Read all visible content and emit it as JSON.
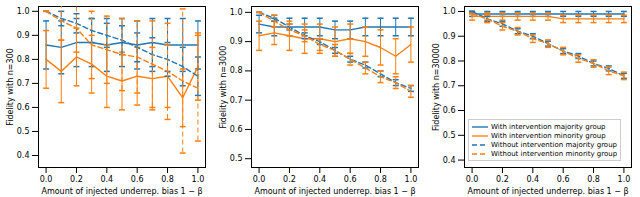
{
  "chart_data": [
    {
      "type": "line",
      "x": [
        0.0,
        0.1,
        0.2,
        0.3,
        0.4,
        0.5,
        0.6,
        0.7,
        0.8,
        0.9,
        1.0
      ],
      "xlim": [
        -0.05,
        1.05
      ],
      "xticks": [
        {
          "value": 0,
          "label": "0.0"
        },
        0.2,
        0.4,
        0.6,
        0.8,
        {
          "value": 1,
          "label": "1.0"
        }
      ],
      "ylim": [
        0.35,
        1.02
      ],
      "yticks": [
        0.4,
        0.5,
        0.6,
        0.7,
        0.8,
        0.9,
        {
          "value": 1,
          "label": "1.0"
        }
      ],
      "x_label": "Amount of injected underrep. bias 1 − β",
      "y_label": "Fidelity with n=300",
      "series": [
        {
          "name": "With intervention majority group",
          "color": "#1f77b4",
          "line_style": "solid",
          "values": [
            0.86,
            0.85,
            0.87,
            0.87,
            0.86,
            0.87,
            0.86,
            0.87,
            0.86,
            0.86,
            0.86
          ],
          "errors": [
            0.1,
            0.11,
            0.1,
            0.1,
            0.11,
            0.1,
            0.1,
            0.1,
            0.11,
            0.11,
            0.1
          ]
        },
        {
          "name": "With intervention minority group",
          "color": "#ff7f0e",
          "line_style": "solid",
          "values": [
            0.8,
            0.75,
            0.81,
            0.78,
            0.73,
            0.71,
            0.73,
            0.72,
            0.73,
            0.64,
            0.77
          ],
          "errors": [
            0.12,
            0.13,
            0.12,
            0.12,
            0.13,
            0.12,
            0.12,
            0.13,
            0.13,
            0.12,
            0.14
          ]
        },
        {
          "name": "Without intervention majority group",
          "color": "#1f77b4",
          "line_style": "dashed",
          "values": [
            1.0,
            0.97,
            0.95,
            0.92,
            0.9,
            0.88,
            0.85,
            0.82,
            0.8,
            0.77,
            0.73
          ],
          "errors": [
            0.0,
            0.03,
            0.04,
            0.05,
            0.05,
            0.06,
            0.06,
            0.07,
            0.07,
            0.08,
            0.08
          ]
        },
        {
          "name": "Without intervention minority group",
          "color": "#ff7f0e",
          "line_style": "dashed",
          "values": [
            1.0,
            0.96,
            0.93,
            0.86,
            0.84,
            0.82,
            0.81,
            0.78,
            0.75,
            0.71,
            0.68
          ],
          "errors": [
            0.0,
            0.08,
            0.1,
            0.14,
            0.14,
            0.15,
            0.15,
            0.18,
            0.2,
            0.3,
            0.22
          ]
        }
      ]
    },
    {
      "type": "line",
      "x": [
        0.0,
        0.1,
        0.2,
        0.3,
        0.4,
        0.5,
        0.6,
        0.7,
        0.8,
        0.9,
        1.0
      ],
      "xlim": [
        -0.05,
        1.05
      ],
      "xticks": [
        {
          "value": 0,
          "label": "0.0"
        },
        0.2,
        0.4,
        0.6,
        0.8,
        {
          "value": 1,
          "label": "1.0"
        }
      ],
      "ylim": [
        0.47,
        1.02
      ],
      "yticks": [
        0.5,
        0.6,
        0.7,
        0.8,
        0.9,
        {
          "value": 1,
          "label": "1.0"
        }
      ],
      "x_label": "Amount of injected underrep. bias 1 − β",
      "y_label": "Fidelity with n=3000",
      "series": [
        {
          "name": "With intervention majority group",
          "color": "#1f77b4",
          "line_style": "solid",
          "values": [
            0.96,
            0.95,
            0.95,
            0.95,
            0.95,
            0.94,
            0.94,
            0.95,
            0.95,
            0.95,
            0.95
          ],
          "errors": [
            0.03,
            0.03,
            0.03,
            0.03,
            0.03,
            0.03,
            0.03,
            0.03,
            0.03,
            0.03,
            0.03
          ]
        },
        {
          "name": "With intervention minority group",
          "color": "#ff7f0e",
          "line_style": "solid",
          "values": [
            0.92,
            0.93,
            0.92,
            0.91,
            0.91,
            0.9,
            0.91,
            0.9,
            0.88,
            0.85,
            0.89
          ],
          "errors": [
            0.05,
            0.04,
            0.05,
            0.05,
            0.05,
            0.05,
            0.05,
            0.05,
            0.06,
            0.06,
            0.06
          ]
        },
        {
          "name": "Without intervention majority group",
          "color": "#1f77b4",
          "line_style": "dashed",
          "values": [
            1.0,
            0.98,
            0.95,
            0.92,
            0.9,
            0.87,
            0.84,
            0.82,
            0.79,
            0.76,
            0.74
          ],
          "errors": [
            0.0,
            0.01,
            0.01,
            0.01,
            0.01,
            0.01,
            0.01,
            0.01,
            0.01,
            0.01,
            0.01
          ]
        },
        {
          "name": "Without intervention minority group",
          "color": "#ff7f0e",
          "line_style": "dashed",
          "values": [
            1.0,
            0.97,
            0.94,
            0.92,
            0.89,
            0.87,
            0.84,
            0.81,
            0.78,
            0.76,
            0.73
          ],
          "errors": [
            0.0,
            0.02,
            0.02,
            0.02,
            0.02,
            0.02,
            0.02,
            0.02,
            0.02,
            0.02,
            0.02
          ]
        }
      ]
    },
    {
      "type": "line",
      "x": [
        0.0,
        0.1,
        0.2,
        0.3,
        0.4,
        0.5,
        0.6,
        0.7,
        0.8,
        0.9,
        1.0
      ],
      "xlim": [
        -0.05,
        1.05
      ],
      "xticks": [
        {
          "value": 0,
          "label": "0.0"
        },
        0.2,
        0.4,
        0.6,
        0.8,
        {
          "value": 1,
          "label": "1.0"
        }
      ],
      "ylim": [
        0.37,
        1.02
      ],
      "yticks": [
        0.4,
        0.5,
        0.6,
        0.7,
        0.8,
        0.9,
        {
          "value": 1,
          "label": "1.0"
        }
      ],
      "x_label": "Amount of injected underrep. bias 1 − β",
      "y_label": "Fidelity with n=30000",
      "legend": "lower left",
      "series": [
        {
          "name": "With intervention majority group",
          "color": "#1f77b4",
          "line_style": "solid",
          "values": [
            0.99,
            0.99,
            0.99,
            0.99,
            0.99,
            0.99,
            0.99,
            0.99,
            0.99,
            0.99,
            0.99
          ],
          "errors": [
            0.01,
            0.01,
            0.01,
            0.01,
            0.01,
            0.01,
            0.01,
            0.01,
            0.01,
            0.01,
            0.01
          ]
        },
        {
          "name": "With intervention minority group",
          "color": "#ff7f0e",
          "line_style": "solid",
          "values": [
            0.98,
            0.98,
            0.98,
            0.98,
            0.98,
            0.98,
            0.97,
            0.97,
            0.97,
            0.97,
            0.97
          ],
          "errors": [
            0.015,
            0.015,
            0.015,
            0.015,
            0.015,
            0.015,
            0.015,
            0.015,
            0.015,
            0.015,
            0.015
          ]
        },
        {
          "name": "Without intervention majority group",
          "color": "#1f77b4",
          "line_style": "dashed",
          "values": [
            1.0,
            0.97,
            0.95,
            0.92,
            0.9,
            0.87,
            0.84,
            0.82,
            0.79,
            0.77,
            0.74
          ],
          "errors": [
            0.0,
            0.01,
            0.01,
            0.01,
            0.01,
            0.01,
            0.01,
            0.01,
            0.01,
            0.01,
            0.01
          ]
        },
        {
          "name": "Without intervention minority group",
          "color": "#ff7f0e",
          "line_style": "dashed",
          "values": [
            0.99,
            0.97,
            0.94,
            0.92,
            0.89,
            0.87,
            0.84,
            0.81,
            0.79,
            0.76,
            0.74
          ],
          "errors": [
            0.0,
            0.015,
            0.015,
            0.015,
            0.015,
            0.015,
            0.015,
            0.015,
            0.015,
            0.015,
            0.015
          ]
        }
      ]
    }
  ]
}
